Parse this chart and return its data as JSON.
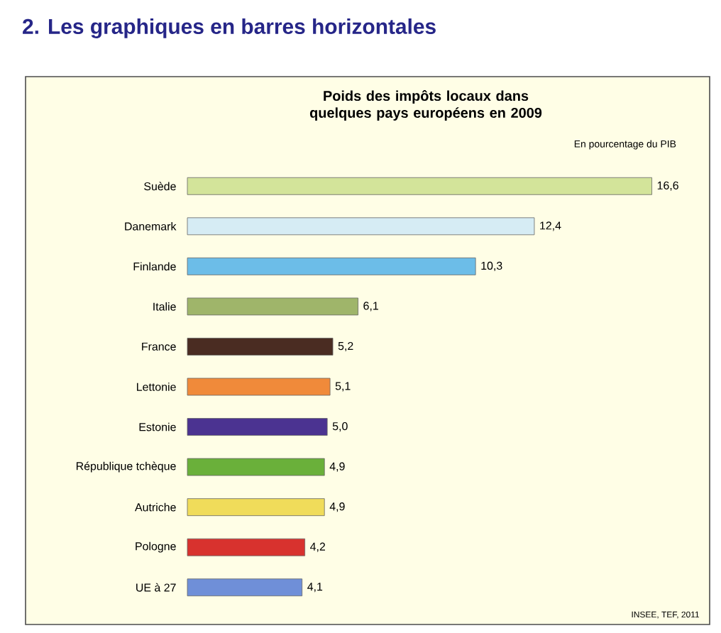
{
  "chart_data": {
    "type": "bar",
    "orientation": "horizontal",
    "title": "Poids des impôts locaux dans quelques pays européens en 2009",
    "subtitle": "En pourcentage du PIB",
    "annotations": [
      "2. Les graphiques en barres horizontales",
      "INSEE, TEF, 2011"
    ],
    "categories": [
      "Suède",
      "Danemark",
      "Finlande",
      "Italie",
      "France",
      "Lettonie",
      "Estonie",
      "République tchèque",
      "Autriche",
      "Pologne",
      "UE à 27"
    ],
    "values": [
      16.6,
      12.4,
      10.3,
      6.1,
      5.2,
      5.1,
      5.0,
      4.9,
      4.9,
      4.2,
      4.1
    ],
    "value_labels": [
      "16,6",
      "12,4",
      "10,3",
      "6,1",
      "5,2",
      "5,1",
      "5,0",
      "4,9",
      "4,9",
      "4,2",
      "4,1"
    ],
    "colors": [
      "#d3e49a",
      "#d6ecf4",
      "#6cbde8",
      "#9fb56a",
      "#4a2c22",
      "#f08a3a",
      "#4b3391",
      "#6ab03a",
      "#f0dc5a",
      "#d8322e",
      "#6f8fd8"
    ]
  }
}
